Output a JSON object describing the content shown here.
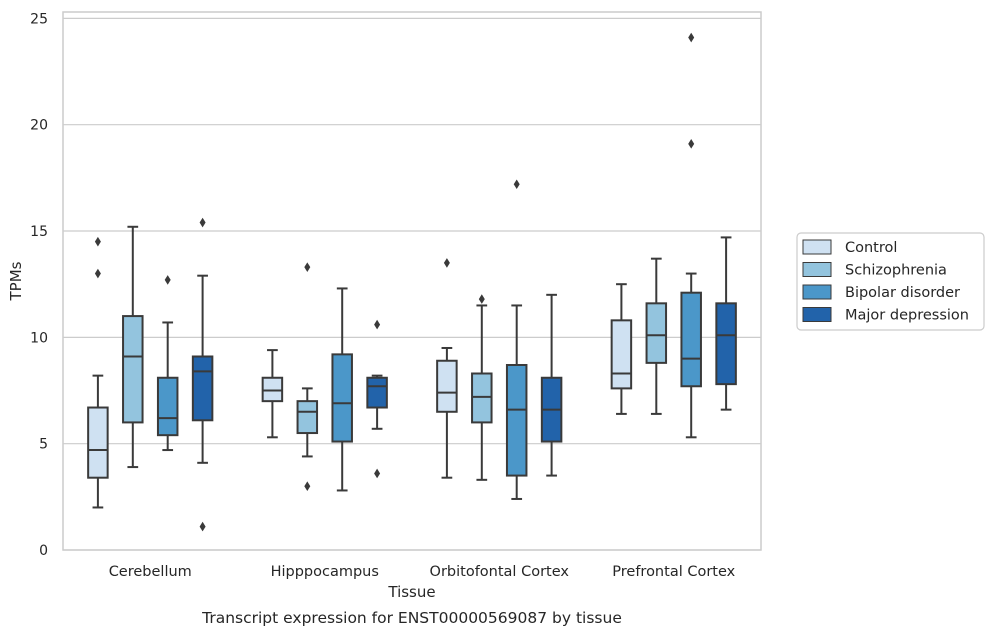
{
  "chart_data": {
    "type": "box",
    "caption": "Transcript expression for ENST00000569087 by tissue",
    "xlabel": "Tissue",
    "ylabel": "TPMs",
    "ylim": [
      0,
      25.3
    ],
    "yticks": [
      0,
      5,
      10,
      15,
      20,
      25
    ],
    "grid": "horizontal",
    "legend_position": "right",
    "categories": [
      "Cerebellum",
      "Hipppocampus",
      "Orbitofontal Cortex",
      "Prefrontal Cortex"
    ],
    "series": [
      {
        "name": "Control",
        "color": "#cfe1f2",
        "boxes": [
          {
            "whislo": 2.0,
            "q1": 3.4,
            "med": 4.7,
            "q3": 6.7,
            "whishi": 8.2,
            "fliers": [
              13.0,
              14.5
            ]
          },
          {
            "whislo": 5.3,
            "q1": 7.0,
            "med": 7.5,
            "q3": 8.1,
            "whishi": 9.4,
            "fliers": []
          },
          {
            "whislo": 3.4,
            "q1": 6.5,
            "med": 7.4,
            "q3": 8.9,
            "whishi": 9.5,
            "fliers": [
              13.5
            ]
          },
          {
            "whislo": 6.4,
            "q1": 7.6,
            "med": 8.3,
            "q3": 10.8,
            "whishi": 12.5,
            "fliers": []
          }
        ]
      },
      {
        "name": "Schizophrenia",
        "color": "#93c4de",
        "boxes": [
          {
            "whislo": 3.9,
            "q1": 6.0,
            "med": 9.1,
            "q3": 11.0,
            "whishi": 15.2,
            "fliers": []
          },
          {
            "whislo": 4.4,
            "q1": 5.5,
            "med": 6.5,
            "q3": 7.0,
            "whishi": 7.6,
            "fliers": [
              3.0,
              13.3
            ]
          },
          {
            "whislo": 3.3,
            "q1": 6.0,
            "med": 7.2,
            "q3": 8.3,
            "whishi": 11.5,
            "fliers": [
              11.8
            ]
          },
          {
            "whislo": 6.4,
            "q1": 8.8,
            "med": 10.1,
            "q3": 11.6,
            "whishi": 13.7,
            "fliers": []
          }
        ]
      },
      {
        "name": "Bipolar disorder",
        "color": "#4b97c9",
        "boxes": [
          {
            "whislo": 4.7,
            "q1": 5.4,
            "med": 6.2,
            "q3": 8.1,
            "whishi": 10.7,
            "fliers": [
              12.7
            ]
          },
          {
            "whislo": 2.8,
            "q1": 5.1,
            "med": 6.9,
            "q3": 9.2,
            "whishi": 12.3,
            "fliers": []
          },
          {
            "whislo": 2.4,
            "q1": 3.5,
            "med": 6.6,
            "q3": 8.7,
            "whishi": 11.5,
            "fliers": [
              17.2
            ]
          },
          {
            "whislo": 5.3,
            "q1": 7.7,
            "med": 9.0,
            "q3": 12.1,
            "whishi": 13.0,
            "fliers": [
              19.1,
              24.1
            ]
          }
        ]
      },
      {
        "name": "Major depression",
        "color": "#2263aa",
        "boxes": [
          {
            "whislo": 4.1,
            "q1": 6.1,
            "med": 8.4,
            "q3": 9.1,
            "whishi": 12.9,
            "fliers": [
              1.1,
              15.4
            ]
          },
          {
            "whislo": 5.7,
            "q1": 6.7,
            "med": 7.7,
            "q3": 8.1,
            "whishi": 8.2,
            "fliers": [
              3.6,
              10.6
            ]
          },
          {
            "whislo": 3.5,
            "q1": 5.1,
            "med": 6.6,
            "q3": 8.1,
            "whishi": 12.0,
            "fliers": []
          },
          {
            "whislo": 6.6,
            "q1": 7.8,
            "med": 10.1,
            "q3": 11.6,
            "whishi": 14.7,
            "fliers": []
          }
        ]
      }
    ]
  }
}
